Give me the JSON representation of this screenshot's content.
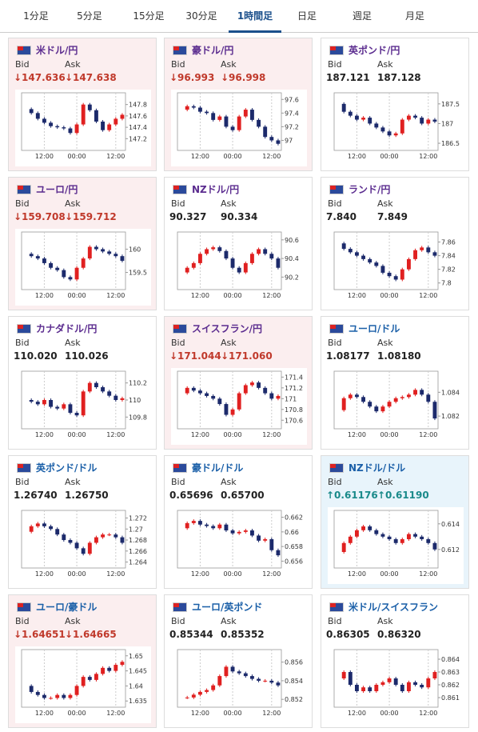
{
  "tabs": [
    "1分足",
    "5分足",
    "15分足",
    "30分足",
    "1時間足",
    "日足",
    "週足",
    "月足"
  ],
  "active_tab": 4,
  "labels": {
    "bid": "Bid",
    "ask": "Ask"
  },
  "time_axis": {
    "xlim": [
      0,
      16
    ],
    "xticks": [
      {
        "value": 3.5,
        "label": "12:00"
      },
      {
        "value": 8.5,
        "label": "00:00"
      },
      {
        "value": 14.5,
        "label": "12:00"
      }
    ]
  },
  "cards": [
    {
      "name": "米ドル/円",
      "bid": "↓147.636",
      "ask": "↓147.638",
      "bg": "#fbeeef",
      "price_color": "#c0392b",
      "name_color": "#5b2c8f",
      "chart": {
        "ylim": [
          147.05,
          147.95
        ],
        "yticks": [
          147.2,
          147.4,
          147.6,
          147.8
        ],
        "closes": [
          147.72,
          147.65,
          147.55,
          147.48,
          147.42,
          147.4,
          147.38,
          147.3,
          147.45,
          147.8,
          147.7,
          147.5,
          147.35,
          147.45,
          147.55,
          147.62
        ]
      }
    },
    {
      "name": "豪ドル/円",
      "bid": "↓96.993",
      "ask": "↓96.998",
      "bg": "#fbeeef",
      "price_color": "#c0392b",
      "name_color": "#5b2c8f",
      "chart": {
        "ylim": [
          96.9,
          97.65
        ],
        "yticks": [
          97,
          97.2,
          97.4,
          97.6
        ],
        "closes": [
          97.45,
          97.5,
          97.48,
          97.42,
          97.4,
          97.3,
          97.35,
          97.2,
          97.15,
          97.35,
          97.45,
          97.3,
          97.2,
          97.05,
          97.0,
          96.95
        ]
      }
    },
    {
      "name": "英ポンド/円",
      "bid": "187.121",
      "ask": "187.128",
      "bg": "#ffffff",
      "price_color": "#222222",
      "name_color": "#5b2c8f",
      "chart": {
        "ylim": [
          186.4,
          187.7
        ],
        "yticks": [
          186.5,
          187,
          187.5
        ],
        "closes": [
          187.5,
          187.3,
          187.2,
          187.1,
          187.15,
          187.0,
          186.9,
          186.8,
          186.7,
          186.75,
          187.1,
          187.2,
          187.15,
          187.0,
          187.1,
          187.05
        ]
      }
    },
    {
      "name": "ユーロ/円",
      "bid": "↓159.708",
      "ask": "↓159.712",
      "bg": "#fbeeef",
      "price_color": "#c0392b",
      "name_color": "#5b2c8f",
      "chart": {
        "ylim": [
          159.2,
          160.3
        ],
        "yticks": [
          159.5,
          160
        ],
        "closes": [
          159.9,
          159.85,
          159.8,
          159.7,
          159.6,
          159.55,
          159.4,
          159.35,
          159.6,
          159.8,
          160.05,
          160.0,
          159.95,
          159.9,
          159.85,
          159.75
        ]
      }
    },
    {
      "name": "NZドル/円",
      "bid": "90.327",
      "ask": "90.334",
      "bg": "#ffffff",
      "price_color": "#222222",
      "name_color": "#5b2c8f",
      "chart": {
        "ylim": [
          90.1,
          90.65
        ],
        "yticks": [
          90.2,
          90.4,
          90.6
        ],
        "closes": [
          90.25,
          90.3,
          90.35,
          90.45,
          90.5,
          90.52,
          90.48,
          90.4,
          90.3,
          90.25,
          90.35,
          90.45,
          90.5,
          90.45,
          90.4,
          90.3
        ]
      }
    },
    {
      "name": "ランド/円",
      "bid": "7.840",
      "ask": "7.849",
      "bg": "#ffffff",
      "price_color": "#222222",
      "name_color": "#5b2c8f",
      "chart": {
        "ylim": [
          7.795,
          7.87
        ],
        "yticks": [
          7.8,
          7.82,
          7.84,
          7.86
        ],
        "closes": [
          7.858,
          7.85,
          7.845,
          7.84,
          7.835,
          7.83,
          7.825,
          7.815,
          7.81,
          7.805,
          7.82,
          7.835,
          7.848,
          7.852,
          7.845,
          7.84
        ]
      }
    },
    {
      "name": "カナダドル/円",
      "bid": "110.020",
      "ask": "110.026",
      "bg": "#ffffff",
      "price_color": "#222222",
      "name_color": "#5b2c8f",
      "chart": {
        "ylim": [
          109.7,
          110.3
        ],
        "yticks": [
          109.8,
          110,
          110.2
        ],
        "closes": [
          110.0,
          109.98,
          109.95,
          110.0,
          109.92,
          109.9,
          109.95,
          109.85,
          109.82,
          110.1,
          110.2,
          110.15,
          110.1,
          110.05,
          110.0,
          110.02
        ]
      }
    },
    {
      "name": "スイスフラン/円",
      "bid": "↓171.044",
      "ask": "↓171.060",
      "bg": "#fbeeef",
      "price_color": "#c0392b",
      "name_color": "#5b2c8f",
      "chart": {
        "ylim": [
          170.5,
          171.45
        ],
        "yticks": [
          170.6,
          170.8,
          171,
          171.2,
          171.4
        ],
        "closes": [
          171.1,
          171.2,
          171.15,
          171.1,
          171.05,
          171.0,
          170.9,
          170.7,
          170.8,
          171.1,
          171.25,
          171.3,
          171.2,
          171.1,
          171.0,
          171.05
        ]
      }
    },
    {
      "name": "ユーロ/ドル",
      "bid": "1.08177",
      "ask": "1.08180",
      "bg": "#ffffff",
      "price_color": "#222222",
      "name_color": "#1a5fa8",
      "chart": {
        "ylim": [
          1.0812,
          1.0855
        ],
        "yticks": [
          1.082,
          1.084
        ],
        "closes": [
          1.0825,
          1.0835,
          1.0838,
          1.0836,
          1.0832,
          1.0828,
          1.0824,
          1.0828,
          1.0832,
          1.0835,
          1.0836,
          1.0838,
          1.0842,
          1.0838,
          1.0832,
          1.0818
        ]
      }
    },
    {
      "name": "英ポンド/ドル",
      "bid": "1.26740",
      "ask": "1.26750",
      "bg": "#ffffff",
      "price_color": "#222222",
      "name_color": "#1a5fa8",
      "chart": {
        "ylim": [
          1.2635,
          1.2728
        ],
        "yticks": [
          1.264,
          1.266,
          1.268,
          1.27,
          1.272
        ],
        "closes": [
          1.2695,
          1.2705,
          1.271,
          1.2705,
          1.27,
          1.269,
          1.268,
          1.2675,
          1.2665,
          1.2655,
          1.2675,
          1.2685,
          1.269,
          1.269,
          1.2685,
          1.2675
        ]
      }
    },
    {
      "name": "豪ドル/ドル",
      "bid": "0.65696",
      "ask": "0.65700",
      "bg": "#ffffff",
      "price_color": "#222222",
      "name_color": "#1a5fa8",
      "chart": {
        "ylim": [
          0.6555,
          0.6625
        ],
        "yticks": [
          0.656,
          0.658,
          0.66,
          0.662
        ],
        "closes": [
          0.6605,
          0.6612,
          0.6615,
          0.661,
          0.6608,
          0.6605,
          0.661,
          0.6602,
          0.6598,
          0.66,
          0.6602,
          0.6595,
          0.6588,
          0.659,
          0.6575,
          0.6568
        ]
      }
    },
    {
      "name": "NZドル/ドル",
      "bid": "↑0.61176",
      "ask": "↑0.61190",
      "bg": "#e8f4fb",
      "price_color": "#1a8a8a",
      "name_color": "#1a5fa8",
      "chart": {
        "ylim": [
          0.6108,
          0.6148
        ],
        "yticks": [
          0.612,
          0.614
        ],
        "closes": [
          0.6118,
          0.6125,
          0.613,
          0.6135,
          0.6138,
          0.6135,
          0.6132,
          0.613,
          0.6128,
          0.6125,
          0.6128,
          0.6132,
          0.613,
          0.6128,
          0.6125,
          0.612
        ]
      }
    },
    {
      "name": "ユーロ/豪ドル",
      "bid": "↓1.64651",
      "ask": "↓1.64665",
      "bg": "#fbeeef",
      "price_color": "#c0392b",
      "name_color": "#1a5fa8",
      "chart": {
        "ylim": [
          1.634,
          1.651
        ],
        "yticks": [
          1.635,
          1.64,
          1.645,
          1.65
        ],
        "closes": [
          1.64,
          1.638,
          1.637,
          1.636,
          1.636,
          1.637,
          1.636,
          1.637,
          1.64,
          1.643,
          1.642,
          1.644,
          1.646,
          1.645,
          1.647,
          1.648
        ]
      }
    },
    {
      "name": "ユーロ/英ポンド",
      "bid": "0.85344",
      "ask": "0.85352",
      "bg": "#ffffff",
      "price_color": "#222222",
      "name_color": "#1a5fa8",
      "chart": {
        "ylim": [
          0.8515,
          0.857
        ],
        "yticks": [
          0.852,
          0.854,
          0.856
        ],
        "closes": [
          0.8522,
          0.8522,
          0.8525,
          0.8528,
          0.853,
          0.8535,
          0.8545,
          0.8555,
          0.855,
          0.8548,
          0.8545,
          0.8542,
          0.854,
          0.854,
          0.8538,
          0.8535
        ]
      }
    },
    {
      "name": "米ドル/スイスフラン",
      "bid": "0.86305",
      "ask": "0.86320",
      "bg": "#ffffff",
      "price_color": "#222222",
      "name_color": "#1a5fa8",
      "chart": {
        "ylim": [
          0.8605,
          0.8645
        ],
        "yticks": [
          0.861,
          0.862,
          0.863,
          0.864
        ],
        "closes": [
          0.8625,
          0.863,
          0.862,
          0.8615,
          0.8618,
          0.8615,
          0.862,
          0.8622,
          0.8625,
          0.862,
          0.8615,
          0.8622,
          0.862,
          0.8618,
          0.8625,
          0.863
        ]
      }
    }
  ]
}
